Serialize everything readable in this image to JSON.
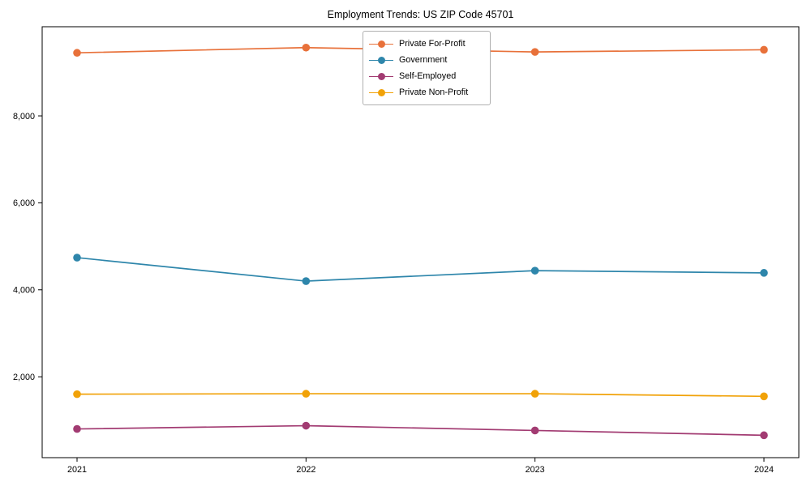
{
  "chart_data": {
    "type": "line",
    "title": "Employment Trends: US ZIP Code 45701",
    "categories": [
      "2021",
      "2022",
      "2023",
      "2024"
    ],
    "series": [
      {
        "name": "Private For-Profit",
        "color": "#e8713a",
        "values": [
          9450,
          9570,
          9470,
          9520
        ]
      },
      {
        "name": "Government",
        "color": "#2e86ab",
        "values": [
          4740,
          4200,
          4440,
          4390
        ]
      },
      {
        "name": "Self-Employed",
        "color": "#a23b72",
        "values": [
          800,
          875,
          765,
          655
        ]
      },
      {
        "name": "Private Non-Profit",
        "color": "#f1a208",
        "values": [
          1600,
          1610,
          1610,
          1550
        ]
      }
    ],
    "xlabel": "",
    "ylabel": "",
    "yticks": [
      2000,
      4000,
      6000,
      8000
    ],
    "ytick_labels": [
      "2,000",
      "4,000",
      "6,000",
      "8,000"
    ],
    "ylim": [
      140,
      10050
    ],
    "legend_position": "upper center",
    "grid": false,
    "axis_color": "#000000",
    "background": "#ffffff",
    "marker": "circle"
  }
}
